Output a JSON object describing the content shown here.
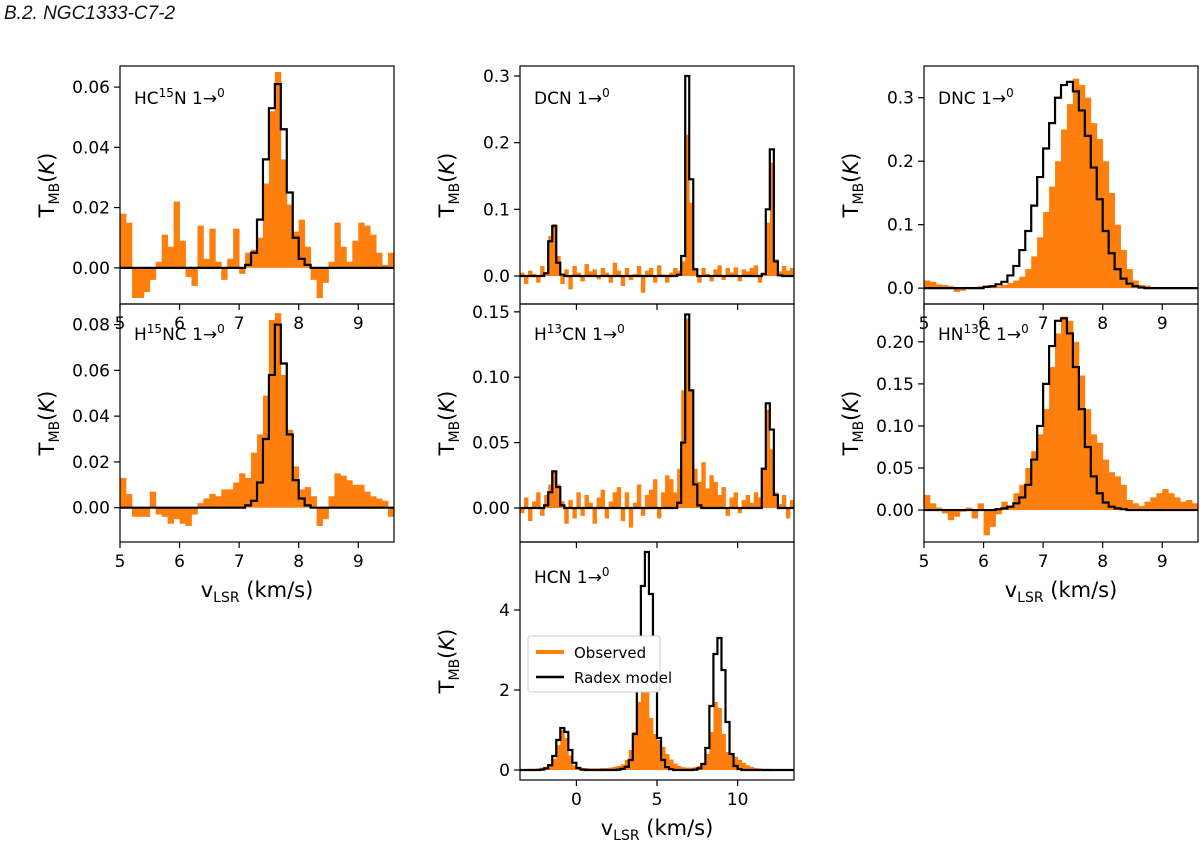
{
  "section_heading": "B.2. NGC1333-C7-2",
  "colors": {
    "observed": "#ff7f0e",
    "model": "#000000"
  },
  "legend": {
    "observed": "Observed",
    "model": "Radex model",
    "placement": "center-left"
  },
  "chart_data": [
    {
      "id": "hc15n",
      "type": "histogram-step",
      "title": "HC15N 1→0",
      "label_parts": [
        "HC",
        "15",
        "N 1",
        "→",
        "0"
      ],
      "xlim": [
        5,
        9.6
      ],
      "ylim": [
        -0.012,
        0.067
      ],
      "xticks": [
        "5",
        "6",
        "7",
        "8",
        "9"
      ],
      "yticks": [
        "0.00",
        "0.02",
        "0.04",
        "0.06"
      ],
      "ytick_values": [
        0,
        0.02,
        0.04,
        0.06
      ],
      "xlabel": "",
      "ylabel": "T_MB(K)",
      "observed": {
        "x0": 5.0,
        "dx": 0.1,
        "values": [
          0.018,
          0.015,
          -0.01,
          -0.01,
          -0.008,
          -0.004,
          0.002,
          0.011,
          0.007,
          0.022,
          0.009,
          -0.003,
          -0.006,
          0.014,
          0.003,
          0.013,
          0.002,
          -0.004,
          0.003,
          0.013,
          -0.002,
          0.005,
          0.006,
          0.01,
          0.028,
          0.052,
          0.065,
          0.036,
          0.021,
          0.012,
          0.016,
          0.007,
          -0.004,
          -0.01,
          -0.005,
          0.002,
          0.015,
          0.007,
          0.002,
          0.009,
          0.015,
          0.014,
          0.011,
          0.005,
          0.001,
          0.005,
          0.003
        ]
      },
      "model": {
        "x0": 5.0,
        "dx": 0.1,
        "values": [
          0,
          0,
          0,
          0,
          0,
          0,
          0,
          0,
          0,
          0,
          0,
          0,
          0,
          0,
          0,
          0,
          0,
          0,
          0,
          0,
          0,
          0.001,
          0.005,
          0.016,
          0.036,
          0.053,
          0.061,
          0.046,
          0.025,
          0.01,
          0.003,
          0.001,
          0,
          0,
          0,
          0,
          0,
          0,
          0,
          0,
          0,
          0,
          0,
          0,
          0,
          0,
          0
        ]
      }
    },
    {
      "id": "h15nc",
      "type": "histogram-step",
      "title": "H15NC 1→0",
      "label_parts": [
        "H",
        "15",
        "NC 1",
        "→",
        "0"
      ],
      "xlim": [
        5,
        9.6
      ],
      "ylim": [
        -0.015,
        0.089
      ],
      "xticks": [
        "5",
        "6",
        "7",
        "8",
        "9"
      ],
      "yticks": [
        "0.00",
        "0.02",
        "0.04",
        "0.06",
        "0.08"
      ],
      "ytick_values": [
        0,
        0.02,
        0.04,
        0.06,
        0.08
      ],
      "xlabel": "v_LSR (km/s)",
      "ylabel": "T_MB(K)",
      "observed": {
        "x0": 5.0,
        "dx": 0.1,
        "values": [
          0.013,
          0.006,
          -0.004,
          -0.004,
          -0.004,
          0.007,
          -0.003,
          -0.004,
          -0.007,
          -0.005,
          -0.007,
          -0.008,
          -0.003,
          0.002,
          0.004,
          0.006,
          0.005,
          0.008,
          0.008,
          0.011,
          0.015,
          0.013,
          0.024,
          0.032,
          0.049,
          0.082,
          0.085,
          0.058,
          0.034,
          0.018,
          0.008,
          0.009,
          0.005,
          -0.008,
          -0.005,
          0.005,
          0.015,
          0.014,
          0.012,
          0.01,
          0.01,
          0.007,
          0.005,
          0.004,
          0.003,
          -0.004,
          -0.013
        ]
      },
      "model": {
        "x0": 5.0,
        "dx": 0.1,
        "values": [
          0,
          0,
          0,
          0,
          0,
          0,
          0,
          0,
          0,
          0,
          0,
          0,
          0,
          0,
          0,
          0,
          0,
          0,
          0,
          0,
          0,
          0.001,
          0.003,
          0.011,
          0.03,
          0.058,
          0.08,
          0.063,
          0.032,
          0.012,
          0.004,
          0.001,
          0,
          0,
          0,
          0,
          0,
          0,
          0,
          0,
          0,
          0,
          0,
          0,
          0,
          0,
          0
        ]
      }
    },
    {
      "id": "dcn",
      "type": "histogram-step",
      "title": "DCN 1→0",
      "label_parts": [
        "DCN 1",
        "→",
        "0"
      ],
      "xlim": [
        -3.5,
        13.5
      ],
      "ylim": [
        -0.042,
        0.315
      ],
      "xticks": [],
      "yticks": [
        "0.0",
        "0.1",
        "0.2",
        "0.3"
      ],
      "ytick_values": [
        0,
        0.1,
        0.2,
        0.3
      ],
      "xlabel": "",
      "ylabel": "T_MB(K)",
      "observed": {
        "x0": -3.5,
        "dx": 0.25,
        "values": [
          0.005,
          -0.012,
          0.008,
          0.003,
          -0.01,
          0.015,
          0.006,
          0.06,
          0.078,
          0.03,
          -0.012,
          0.01,
          -0.02,
          0.015,
          0.005,
          -0.008,
          0.018,
          0.007,
          0.01,
          -0.005,
          0.012,
          0.005,
          -0.01,
          0.02,
          0.008,
          -0.015,
          0.012,
          -0.006,
          0.003,
          0.015,
          -0.025,
          0.008,
          0.012,
          -0.01,
          0.016,
          0.002,
          -0.01,
          0.005,
          0.012,
          0.008,
          0.022,
          0.212,
          0.11,
          0.012,
          -0.01,
          0.012,
          0.003,
          -0.008,
          0.01,
          0.016,
          -0.006,
          0.012,
          0.005,
          0.013,
          -0.008,
          0.01,
          0.007,
          0.012,
          0.016,
          -0.01,
          0.005,
          0.08,
          0.17,
          0.025,
          0.007,
          0.015,
          0.008,
          0.012,
          -0.005
        ]
      },
      "model": {
        "x0": -3.5,
        "dx": 0.25,
        "values": [
          0,
          0,
          0,
          0,
          0,
          0,
          0.004,
          0.052,
          0.075,
          0.02,
          0.002,
          0,
          0,
          0,
          0,
          0,
          0,
          0,
          0,
          0,
          0,
          0,
          0,
          0,
          0,
          0,
          0,
          0,
          0,
          0,
          0,
          0,
          0,
          0,
          0,
          0,
          0,
          0,
          0,
          0.002,
          0.03,
          0.3,
          0.145,
          0.01,
          0,
          0,
          0,
          0,
          0,
          0,
          0,
          0,
          0,
          0,
          0,
          0,
          0,
          0,
          0,
          0,
          0.003,
          0.1,
          0.19,
          0.022,
          0.001,
          0,
          0,
          0,
          0
        ]
      }
    },
    {
      "id": "h13cn",
      "type": "histogram-step",
      "title": "H13CN 1→0",
      "label_parts": [
        "H",
        "13",
        "CN 1",
        "→",
        "0"
      ],
      "xlim": [
        -3.5,
        13.5
      ],
      "ylim": [
        -0.026,
        0.156
      ],
      "xticks": [],
      "yticks": [
        "0.00",
        "0.05",
        "0.10",
        "0.15"
      ],
      "ytick_values": [
        0,
        0.05,
        0.1,
        0.15
      ],
      "xlabel": "",
      "ylabel": "T_MB(K)",
      "observed": {
        "x0": -3.5,
        "dx": 0.25,
        "values": [
          -0.004,
          0.008,
          -0.01,
          0.005,
          0.012,
          -0.006,
          0.01,
          0.018,
          0.028,
          0.018,
          0.005,
          -0.012,
          0.006,
          -0.008,
          0.012,
          -0.006,
          0.01,
          0.004,
          -0.012,
          0.008,
          0.014,
          -0.008,
          0.005,
          0.012,
          0.016,
          -0.01,
          0.012,
          -0.015,
          0.004,
          0.018,
          -0.006,
          0.01,
          0.014,
          0.022,
          -0.008,
          0.012,
          0.025,
          0.022,
          0.012,
          0.03,
          0.09,
          0.145,
          0.09,
          0.03,
          0.02,
          0.035,
          0.015,
          0.025,
          0.02,
          0.01,
          0.016,
          -0.006,
          0.008,
          0.012,
          -0.004,
          0.006,
          0.01,
          0.004,
          0.012,
          0.008,
          0.03,
          0.075,
          0.045,
          0.012,
          0.003,
          0.01,
          -0.008,
          0.006,
          0.01
        ]
      },
      "model": {
        "x0": -3.5,
        "dx": 0.25,
        "values": [
          0,
          0,
          0,
          0,
          0,
          0,
          0.002,
          0.012,
          0.028,
          0.016,
          0.002,
          0,
          0,
          0,
          0,
          0,
          0,
          0,
          0,
          0,
          0,
          0,
          0,
          0,
          0,
          0,
          0,
          0,
          0,
          0,
          0,
          0,
          0,
          0,
          0,
          0,
          0,
          0,
          0,
          0.004,
          0.05,
          0.148,
          0.09,
          0.018,
          0.002,
          0,
          0,
          0,
          0,
          0,
          0,
          0,
          0,
          0,
          0,
          0,
          0,
          0,
          0,
          0,
          0.03,
          0.08,
          0.06,
          0.01,
          0,
          0,
          0,
          0,
          0
        ]
      }
    },
    {
      "id": "hcn",
      "type": "histogram-step",
      "title": "HCN 1→0",
      "label_parts": [
        "HCN 1",
        "→",
        "0"
      ],
      "xlim": [
        -3.5,
        13.5
      ],
      "ylim": [
        -0.25,
        5.7
      ],
      "xticks": [
        "0",
        "5",
        "10"
      ],
      "xtick_values": [
        0,
        5,
        10
      ],
      "yticks": [
        "0",
        "2",
        "4"
      ],
      "ytick_values": [
        0,
        2,
        4
      ],
      "xlabel": "v_LSR (km/s)",
      "ylabel": "T_MB(K)",
      "observed": {
        "x0": -3.5,
        "dx": 0.25,
        "values": [
          0.02,
          0.02,
          0.03,
          0.03,
          0.04,
          0.06,
          0.08,
          0.14,
          0.28,
          0.62,
          1.0,
          0.8,
          0.36,
          0.12,
          0.06,
          0.05,
          0.05,
          0.04,
          0.04,
          0.04,
          0.05,
          0.05,
          0.06,
          0.08,
          0.1,
          0.14,
          0.25,
          0.5,
          0.95,
          1.7,
          3.0,
          2.4,
          1.3,
          0.9,
          0.75,
          0.58,
          0.4,
          0.26,
          0.16,
          0.1,
          0.07,
          0.06,
          0.06,
          0.07,
          0.1,
          0.18,
          0.4,
          0.95,
          1.7,
          1.55,
          0.9,
          0.45,
          0.4,
          0.33,
          0.25,
          0.18,
          0.12,
          0.08,
          0.05,
          0.04,
          0.03,
          0.03,
          0.02,
          0.02,
          0.02,
          0.02,
          0.02,
          0.02
        ]
      },
      "model": {
        "x0": -3.5,
        "dx": 0.25,
        "values": [
          0,
          0,
          0,
          0,
          0,
          0.01,
          0.04,
          0.12,
          0.35,
          0.75,
          1.05,
          0.95,
          0.5,
          0.18,
          0.05,
          0.01,
          0,
          0,
          0,
          0,
          0,
          0,
          0,
          0,
          0.01,
          0.03,
          0.08,
          0.25,
          0.9,
          2.5,
          4.6,
          5.45,
          4.4,
          2.2,
          0.8,
          0.25,
          0.07,
          0.02,
          0,
          0,
          0,
          0,
          0,
          0.01,
          0.04,
          0.15,
          0.55,
          1.6,
          2.9,
          3.3,
          2.5,
          1.2,
          0.4,
          0.1,
          0.02,
          0,
          0,
          0,
          0,
          0,
          0,
          0,
          0,
          0,
          0,
          0,
          0,
          0
        ]
      }
    },
    {
      "id": "dnc",
      "type": "histogram-step",
      "title": "DNC 1→0",
      "label_parts": [
        "DNC 1",
        "→",
        "0"
      ],
      "xlim": [
        5,
        9.6
      ],
      "ylim": [
        -0.025,
        0.35
      ],
      "xticks": [
        "5",
        "6",
        "7",
        "8",
        "9"
      ],
      "yticks": [
        "0.0",
        "0.1",
        "0.2",
        "0.3"
      ],
      "ytick_values": [
        0,
        0.1,
        0.2,
        0.3
      ],
      "xlabel": "",
      "ylabel": "T_MB(K)",
      "observed": {
        "x0": 5.0,
        "dx": 0.1,
        "values": [
          0.012,
          0.01,
          0.006,
          0.005,
          0.003,
          -0.006,
          -0.004,
          0.002,
          0.001,
          0.003,
          0.004,
          0.002,
          0.003,
          0.005,
          0.008,
          0.012,
          0.018,
          0.03,
          0.05,
          0.08,
          0.12,
          0.16,
          0.2,
          0.25,
          0.29,
          0.33,
          0.32,
          0.3,
          0.26,
          0.235,
          0.2,
          0.15,
          0.1,
          0.06,
          0.03,
          0.012,
          0.005,
          0.004,
          0.002,
          0.001,
          0.001,
          0.0,
          0.001,
          0.0,
          0.001,
          0.0,
          0.0
        ]
      },
      "model": {
        "x0": 5.0,
        "dx": 0.1,
        "values": [
          0,
          0,
          0,
          0,
          0,
          0,
          0,
          0,
          0,
          0,
          0.002,
          0.003,
          0.006,
          0.01,
          0.02,
          0.035,
          0.06,
          0.09,
          0.13,
          0.175,
          0.22,
          0.26,
          0.3,
          0.32,
          0.325,
          0.31,
          0.28,
          0.24,
          0.19,
          0.14,
          0.09,
          0.055,
          0.03,
          0.015,
          0.007,
          0.003,
          0.001,
          0,
          0,
          0,
          0,
          0,
          0,
          0,
          0,
          0,
          0
        ]
      }
    },
    {
      "id": "hn13c",
      "type": "histogram-step",
      "title": "HN13C 1→0",
      "label_parts": [
        "HN",
        "13",
        "C 1",
        "→",
        "0"
      ],
      "xlim": [
        5,
        9.6
      ],
      "ylim": [
        -0.038,
        0.245
      ],
      "xticks": [
        "5",
        "6",
        "7",
        "8",
        "9"
      ],
      "yticks": [
        "0.00",
        "0.05",
        "0.10",
        "0.15",
        "0.20"
      ],
      "ytick_values": [
        0,
        0.05,
        0.1,
        0.15,
        0.2
      ],
      "xlabel": "v_LSR (km/s)",
      "ylabel": "T_MB(K)",
      "observed": {
        "x0": 5.0,
        "dx": 0.1,
        "values": [
          0.018,
          0.008,
          0.003,
          -0.004,
          -0.012,
          -0.008,
          -0.002,
          0.003,
          -0.01,
          0.008,
          -0.03,
          -0.02,
          -0.005,
          0.01,
          0.005,
          0.02,
          0.03,
          0.05,
          0.07,
          0.09,
          0.12,
          0.17,
          0.21,
          0.23,
          0.225,
          0.2,
          0.16,
          0.12,
          0.09,
          0.08,
          0.06,
          0.045,
          0.04,
          0.03,
          0.012,
          0.008,
          0.005,
          0.01,
          0.015,
          0.02,
          0.025,
          0.02,
          0.015,
          0.01,
          0.012,
          0.008,
          0.003
        ]
      },
      "model": {
        "x0": 5.0,
        "dx": 0.1,
        "values": [
          0,
          0,
          0,
          0,
          0,
          0,
          0,
          0,
          0,
          0,
          0,
          0,
          0.001,
          0.002,
          0.004,
          0.008,
          0.015,
          0.03,
          0.06,
          0.1,
          0.15,
          0.195,
          0.225,
          0.228,
          0.21,
          0.17,
          0.12,
          0.075,
          0.04,
          0.02,
          0.009,
          0.004,
          0.002,
          0.001,
          0,
          0,
          0,
          0,
          0,
          0,
          0,
          0,
          0,
          0,
          0,
          0,
          0
        ]
      }
    }
  ]
}
